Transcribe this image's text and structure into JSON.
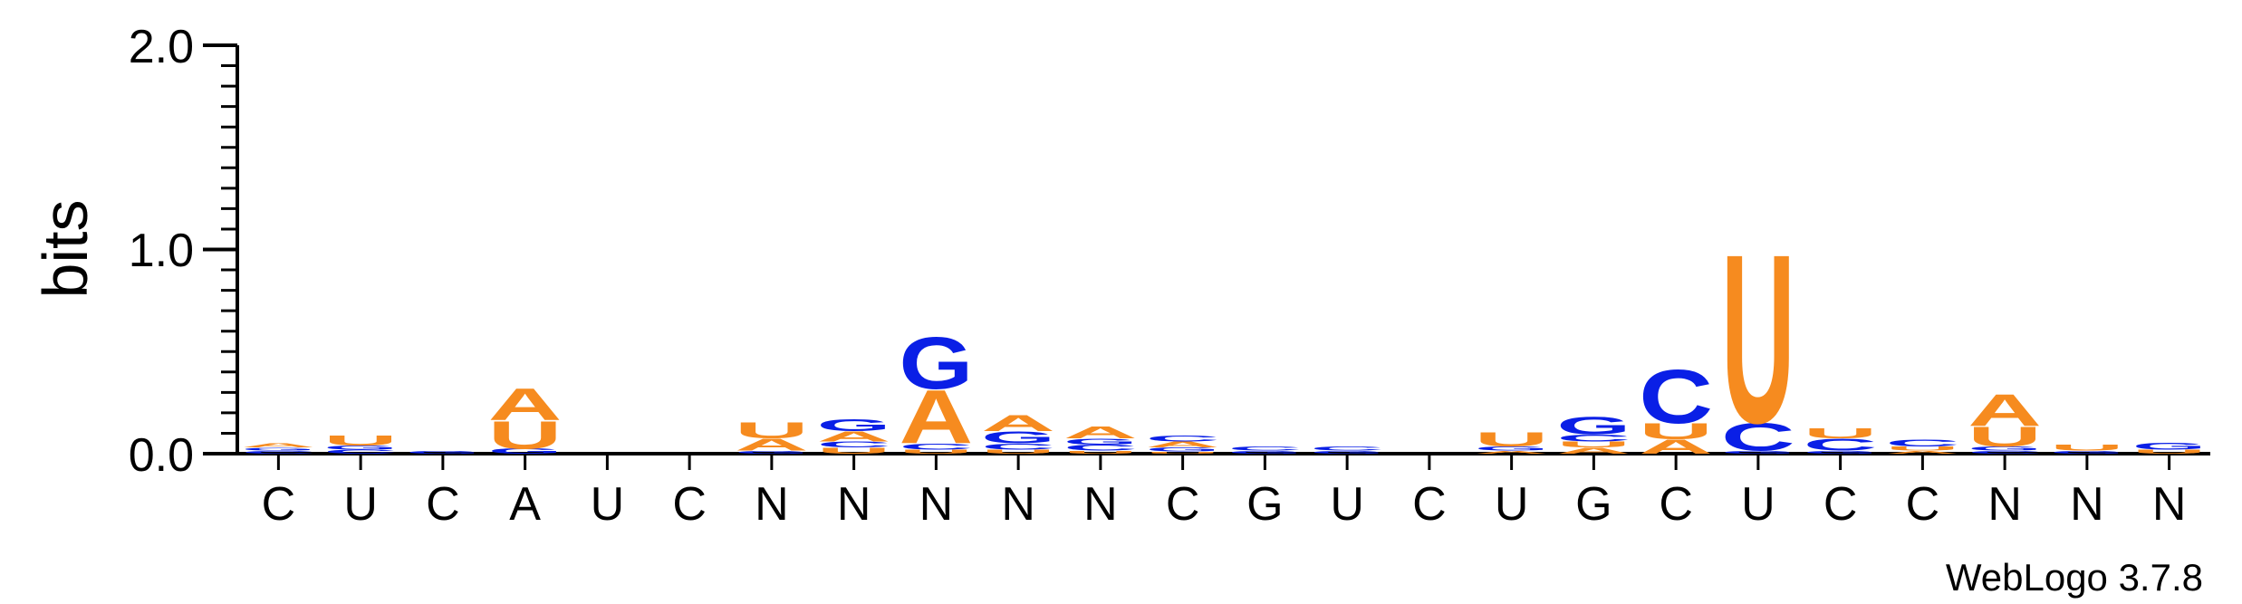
{
  "chart_data": {
    "type": "sequence-logo",
    "ylabel": "bits",
    "ylim": [
      0,
      2.0
    ],
    "yticks": [
      "0.0",
      "1.0",
      "2.0"
    ],
    "credit": "WebLogo 3.7.8",
    "colors": {
      "A": "#f68b1f",
      "U": "#f68b1f",
      "G": "#0a1fe6",
      "C": "#0a1fe6"
    },
    "positions": [
      {
        "label": "C",
        "stack": [
          {
            "l": "C",
            "h": 0.015
          },
          {
            "l": "G",
            "h": 0.015
          },
          {
            "l": "A",
            "h": 0.02
          }
        ]
      },
      {
        "label": "U",
        "stack": [
          {
            "l": "C",
            "h": 0.02
          },
          {
            "l": "G",
            "h": 0.02
          },
          {
            "l": "U",
            "h": 0.05
          }
        ]
      },
      {
        "label": "C",
        "stack": [
          {
            "l": "G",
            "h": 0.015
          }
        ]
      },
      {
        "label": "A",
        "stack": [
          {
            "l": "G",
            "h": 0.025
          },
          {
            "l": "U",
            "h": 0.14
          },
          {
            "l": "A",
            "h": 0.16
          }
        ]
      },
      {
        "label": "U",
        "stack": []
      },
      {
        "label": "C",
        "stack": []
      },
      {
        "label": "N",
        "stack": [
          {
            "l": "G",
            "h": 0.015
          },
          {
            "l": "A",
            "h": 0.06
          },
          {
            "l": "U",
            "h": 0.08
          }
        ]
      },
      {
        "label": "N",
        "stack": [
          {
            "l": "U",
            "h": 0.03
          },
          {
            "l": "C",
            "h": 0.03
          },
          {
            "l": "A",
            "h": 0.05
          },
          {
            "l": "G",
            "h": 0.06
          }
        ]
      },
      {
        "label": "N",
        "stack": [
          {
            "l": "U",
            "h": 0.02
          },
          {
            "l": "C",
            "h": 0.03
          },
          {
            "l": "A",
            "h": 0.27
          },
          {
            "l": "G",
            "h": 0.26
          }
        ]
      },
      {
        "label": "N",
        "stack": [
          {
            "l": "U",
            "h": 0.02
          },
          {
            "l": "C",
            "h": 0.03
          },
          {
            "l": "G",
            "h": 0.06
          },
          {
            "l": "A",
            "h": 0.08
          }
        ]
      },
      {
        "label": "N",
        "stack": [
          {
            "l": "U",
            "h": 0.015
          },
          {
            "l": "C",
            "h": 0.03
          },
          {
            "l": "G",
            "h": 0.03
          },
          {
            "l": "A",
            "h": 0.06
          }
        ]
      },
      {
        "label": "C",
        "stack": [
          {
            "l": "U",
            "h": 0.01
          },
          {
            "l": "G",
            "h": 0.02
          },
          {
            "l": "A",
            "h": 0.03
          },
          {
            "l": "C",
            "h": 0.03
          }
        ]
      },
      {
        "label": "G",
        "stack": [
          {
            "l": "G",
            "h": 0.015
          },
          {
            "l": "C",
            "h": 0.02
          }
        ]
      },
      {
        "label": "U",
        "stack": [
          {
            "l": "G",
            "h": 0.015
          },
          {
            "l": "C",
            "h": 0.02
          }
        ]
      },
      {
        "label": "C",
        "stack": []
      },
      {
        "label": "U",
        "stack": [
          {
            "l": "A",
            "h": 0.015
          },
          {
            "l": "G",
            "h": 0.02
          },
          {
            "l": "U",
            "h": 0.07
          }
        ]
      },
      {
        "label": "G",
        "stack": [
          {
            "l": "A",
            "h": 0.03
          },
          {
            "l": "U",
            "h": 0.03
          },
          {
            "l": "C",
            "h": 0.035
          },
          {
            "l": "G",
            "h": 0.09
          }
        ]
      },
      {
        "label": "C",
        "stack": [
          {
            "l": "A",
            "h": 0.07
          },
          {
            "l": "U",
            "h": 0.08
          },
          {
            "l": "C",
            "h": 0.27
          }
        ]
      },
      {
        "label": "U",
        "stack": [
          {
            "l": "G",
            "h": 0.015
          },
          {
            "l": "C",
            "h": 0.14
          },
          {
            "l": "U",
            "h": 0.85
          }
        ]
      },
      {
        "label": "C",
        "stack": [
          {
            "l": "G",
            "h": 0.015
          },
          {
            "l": "C",
            "h": 0.06
          },
          {
            "l": "U",
            "h": 0.05
          }
        ]
      },
      {
        "label": "C",
        "stack": [
          {
            "l": "A",
            "h": 0.015
          },
          {
            "l": "U",
            "h": 0.02
          },
          {
            "l": "C",
            "h": 0.035
          }
        ]
      },
      {
        "label": "N",
        "stack": [
          {
            "l": "C",
            "h": 0.015
          },
          {
            "l": "G",
            "h": 0.02
          },
          {
            "l": "U",
            "h": 0.1
          },
          {
            "l": "A",
            "h": 0.16
          }
        ]
      },
      {
        "label": "N",
        "stack": [
          {
            "l": "G",
            "h": 0.015
          },
          {
            "l": "U",
            "h": 0.03
          }
        ]
      },
      {
        "label": "N",
        "stack": [
          {
            "l": "U",
            "h": 0.02
          },
          {
            "l": "G",
            "h": 0.035
          }
        ]
      }
    ]
  }
}
